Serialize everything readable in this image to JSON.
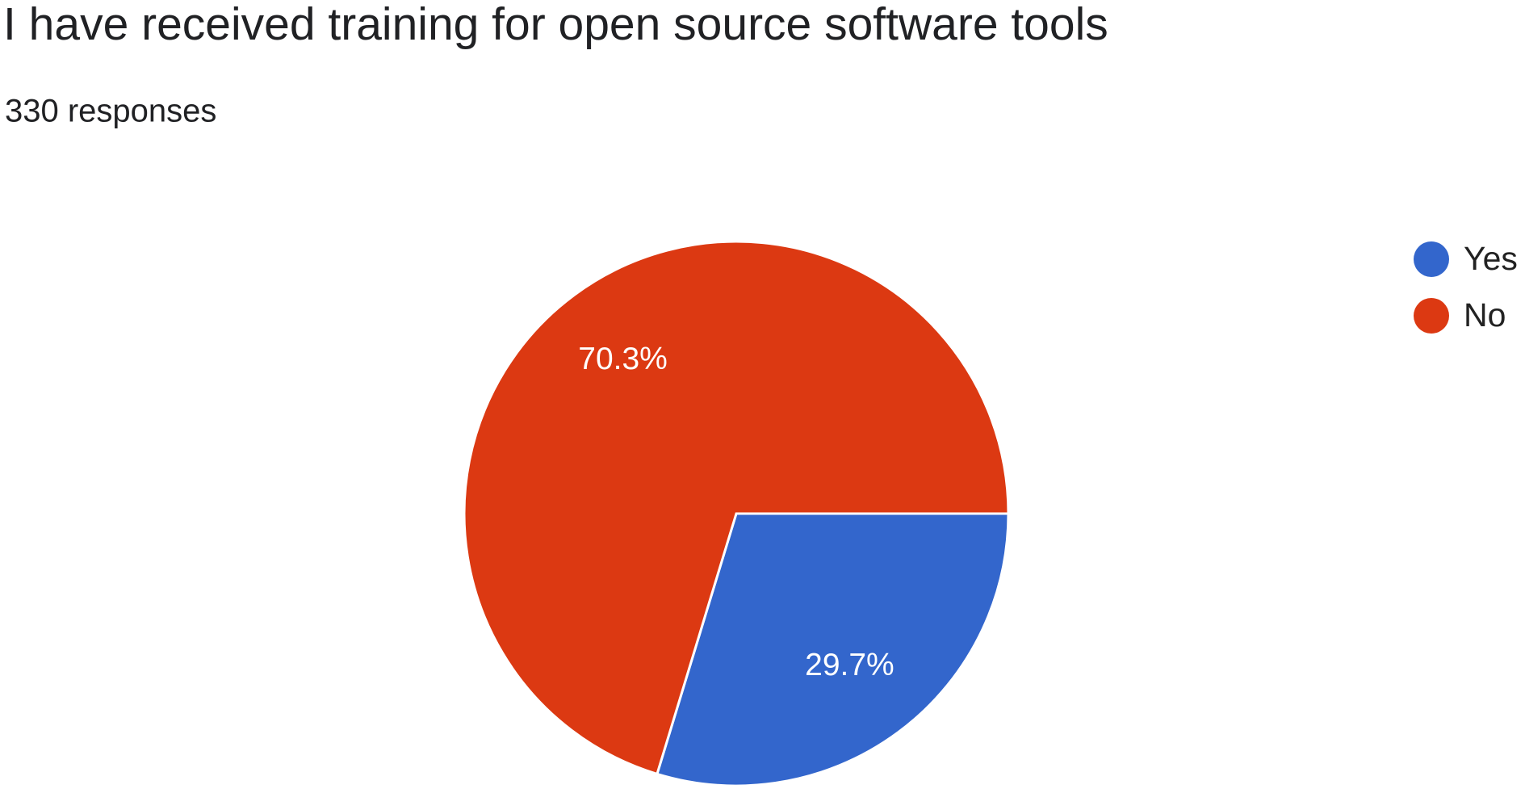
{
  "chart_data": {
    "type": "pie",
    "title": "I have received training for open source software tools",
    "subtitle": "330 responses",
    "categories": [
      "Yes",
      "No"
    ],
    "values": [
      29.7,
      70.3
    ],
    "value_labels": [
      "29.7%",
      "70.3%"
    ],
    "colors": [
      "#3366cc",
      "#dc3912"
    ],
    "legend": "right"
  }
}
